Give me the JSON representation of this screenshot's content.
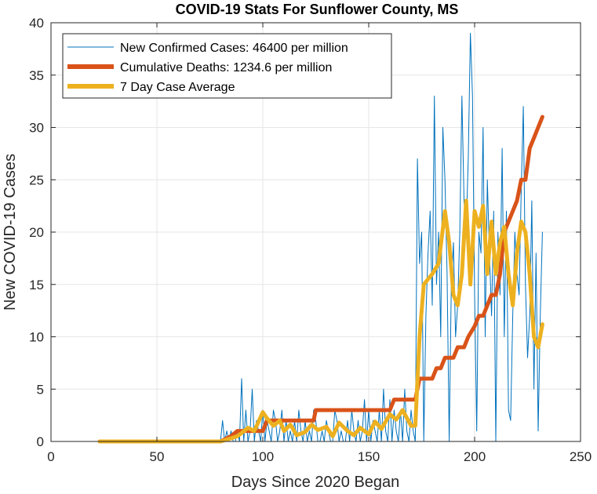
{
  "chart_data": {
    "type": "line",
    "title": "COVID-19 Stats For Sunflower County, MS",
    "xlabel": "Days Since 2020 Began",
    "ylabel": "New COVID-19 Cases",
    "xlim": [
      0,
      250
    ],
    "ylim": [
      0,
      40
    ],
    "xticks": [
      0,
      50,
      100,
      150,
      200,
      250
    ],
    "yticks": [
      0,
      5,
      10,
      15,
      20,
      25,
      30,
      35,
      40
    ],
    "grid": true,
    "legend_position": "top-left",
    "series": [
      {
        "name": "New Confirmed Cases: 46400 per million",
        "color": "#0072BD",
        "style": "thin",
        "x": [
          80,
          81,
          82,
          83,
          84,
          85,
          86,
          87,
          88,
          89,
          90,
          91,
          92,
          93,
          94,
          95,
          96,
          97,
          98,
          99,
          100,
          101,
          102,
          103,
          104,
          105,
          106,
          107,
          108,
          109,
          110,
          111,
          112,
          113,
          114,
          115,
          116,
          117,
          118,
          119,
          120,
          121,
          122,
          123,
          124,
          125,
          126,
          127,
          128,
          129,
          130,
          131,
          132,
          133,
          134,
          135,
          136,
          137,
          138,
          139,
          140,
          141,
          142,
          143,
          144,
          145,
          146,
          147,
          148,
          149,
          150,
          151,
          152,
          153,
          154,
          155,
          156,
          157,
          158,
          159,
          160,
          161,
          162,
          163,
          164,
          165,
          166,
          167,
          168,
          169,
          170,
          171,
          172,
          173,
          174,
          175,
          176,
          177,
          178,
          179,
          180,
          181,
          182,
          183,
          184,
          185,
          186,
          187,
          188,
          189,
          190,
          191,
          192,
          193,
          194,
          195,
          196,
          197,
          198,
          199,
          200,
          201,
          202,
          203,
          204,
          205,
          206,
          207,
          208,
          209,
          210,
          211,
          212,
          213,
          214,
          215,
          216,
          217,
          218,
          219,
          220,
          221,
          222,
          223,
          224,
          225,
          226,
          227,
          228,
          229,
          230,
          231,
          232
        ],
        "values": [
          0,
          2,
          0,
          1,
          0,
          1,
          0,
          0,
          1,
          0,
          6,
          0,
          3,
          0,
          1,
          5,
          0,
          2,
          1,
          0,
          3,
          0,
          2,
          1,
          0,
          3,
          2,
          0,
          1,
          3,
          0,
          2,
          0,
          1,
          0,
          2,
          0,
          3,
          1,
          0,
          2,
          0,
          1,
          0,
          3,
          2,
          0,
          0,
          1,
          0,
          2,
          1,
          0,
          0,
          3,
          2,
          0,
          1,
          0,
          0,
          2,
          0,
          3,
          1,
          0,
          2,
          0,
          1,
          4,
          0,
          3,
          0,
          2,
          1,
          0,
          3,
          0,
          5,
          1,
          0,
          4,
          0,
          3,
          1,
          0,
          3,
          0,
          5,
          1,
          0,
          3,
          1,
          0,
          27,
          17,
          20,
          0,
          12,
          18,
          22,
          13,
          33,
          15,
          20,
          10,
          30,
          25,
          16,
          0,
          15,
          19,
          10,
          13,
          20,
          33,
          23,
          20,
          27,
          39,
          33,
          14,
          1,
          20,
          18,
          30,
          10,
          25,
          18,
          12,
          22,
          0,
          20,
          14,
          28,
          10,
          22,
          3,
          2,
          12,
          20,
          16,
          14,
          24,
          32,
          15,
          8,
          12,
          23,
          5,
          18,
          1,
          12,
          20
        ],
        "stroke_width": 1
      },
      {
        "name": "Cumulative Deaths: 1234.6 per million",
        "color": "#D95319",
        "style": "thick",
        "x": [
          23,
          80,
          85,
          88,
          90,
          95,
          100,
          102,
          105,
          124,
          125,
          160,
          162,
          172,
          174,
          180,
          182,
          184,
          186,
          190,
          192,
          195,
          197,
          200,
          202,
          204,
          206,
          208,
          210,
          212,
          214,
          216,
          218,
          220,
          222,
          224,
          226,
          228,
          230,
          232
        ],
        "values": [
          0,
          0,
          0.5,
          1,
          1,
          1,
          1,
          2,
          2,
          2,
          3,
          3,
          4,
          4,
          6,
          6,
          7,
          7,
          8,
          8,
          9,
          9,
          10,
          11,
          12,
          12,
          13,
          14,
          14,
          16,
          20,
          21,
          22,
          23,
          25,
          25,
          28,
          29,
          30,
          31
        ],
        "stroke_width": 5
      },
      {
        "name": "7 Day Case Average",
        "color": "#EDB120",
        "style": "thick",
        "x": [
          23,
          80,
          85,
          88,
          90,
          93,
          96,
          100,
          102,
          105,
          108,
          110,
          113,
          116,
          120,
          123,
          126,
          130,
          133,
          136,
          140,
          143,
          146,
          150,
          153,
          156,
          160,
          163,
          166,
          170,
          172,
          174,
          176,
          178,
          180,
          183,
          186,
          188,
          190,
          192,
          194,
          196,
          198,
          200,
          202,
          204,
          206,
          208,
          210,
          212,
          214,
          216,
          218,
          220,
          222,
          224,
          226,
          228,
          230,
          232
        ],
        "values": [
          0,
          0,
          0.3,
          0.5,
          0.8,
          1.3,
          1,
          2.8,
          2.2,
          1.5,
          2,
          1,
          1.6,
          0.6,
          0.9,
          1.6,
          1.1,
          1.4,
          0.5,
          1.8,
          1,
          0.6,
          1.3,
          0.7,
          1.9,
          1.2,
          2.6,
          2.1,
          3,
          1.5,
          1.5,
          10,
          15,
          15.5,
          16,
          17,
          22,
          19,
          14,
          13,
          16,
          23,
          15,
          22,
          20.5,
          22.5,
          16,
          21,
          16,
          19,
          20.5,
          16,
          13,
          18,
          21,
          20,
          16,
          10,
          9,
          11.2
        ],
        "stroke_width": 5
      }
    ]
  }
}
